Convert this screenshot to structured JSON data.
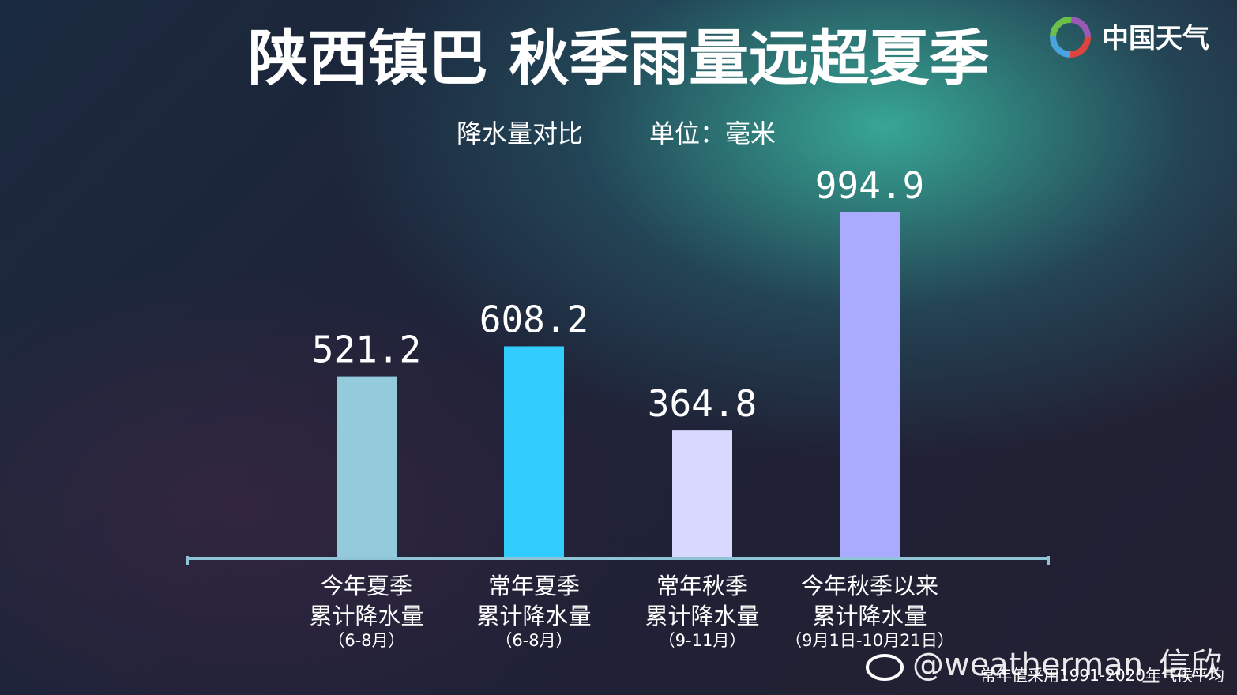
{
  "chart_data": {
    "type": "bar",
    "title": "陕西镇巴  秋季雨量远超夏季",
    "subtitle": "降水量对比",
    "unit": "单位：毫米",
    "categories": [
      [
        "今年夏季",
        "累计降水量",
        "（6-8月）"
      ],
      [
        "常年夏季",
        "累计降水量",
        "（6-8月）"
      ],
      [
        "常年秋季",
        "累计降水量",
        "（9-11月）"
      ],
      [
        "今年秋季以来",
        "累计降水量",
        "（9月1日-10月21日）"
      ]
    ],
    "values": [
      521.2,
      608.2,
      364.8,
      994.9
    ],
    "colors": [
      "#94cbdc",
      "#33ccff",
      "#d9d9ff",
      "#aaaaff"
    ],
    "logo": "中国天气",
    "watermark": "@weatherman_信欣",
    "footnote": "常年值采用1991-2020年气候平均"
  }
}
